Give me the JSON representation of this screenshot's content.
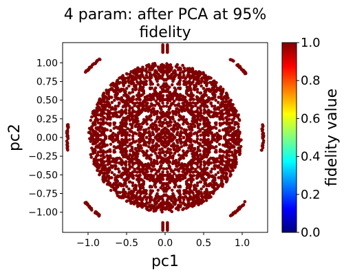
{
  "chart_data": {
    "type": "scatter",
    "title_line1": "4 param: after PCA at 95%",
    "title_line2": "fidelity",
    "xlabel": "pc1",
    "ylabel": "pc2",
    "xlim": [
      -1.33,
      1.33
    ],
    "ylim": [
      -1.27,
      1.27
    ],
    "xticks": [
      -1.0,
      -0.5,
      0.0,
      0.5,
      1.0
    ],
    "xtick_labels": [
      "−1.0",
      "−0.5",
      "0.0",
      "0.5",
      "1.0"
    ],
    "yticks": [
      1.0,
      0.75,
      0.5,
      0.25,
      0.0,
      -0.25,
      -0.5,
      -0.75,
      -1.0
    ],
    "ytick_labels": [
      "1.00",
      "0.75",
      "0.50",
      "0.25",
      "0.00",
      "−0.25",
      "−0.50",
      "−0.75",
      "−1.00"
    ],
    "point_color": "#7f0000",
    "point_value": 1.0,
    "grid": false,
    "colorbar": {
      "label": "fidelity value",
      "colormap": "jet",
      "range": [
        0.0,
        1.0
      ],
      "ticks": [
        0.0,
        0.2,
        0.4,
        0.6,
        0.8,
        1.0
      ],
      "tick_labels": [
        "0.0",
        "0.2",
        "0.4",
        "0.6",
        "0.8",
        "1.0"
      ],
      "colors": [
        "#00007f",
        "#0000ff",
        "#007fff",
        "#00ffff",
        "#7fff7f",
        "#ffff00",
        "#ff7f00",
        "#ff0000",
        "#7f0000"
      ]
    },
    "structure": {
      "disk_radius": 1.0,
      "outer_arcs": [
        {
          "center_angle_deg": 0,
          "radius": 1.27,
          "half_span_deg": 8
        },
        {
          "center_angle_deg": 180,
          "radius": 1.27,
          "half_span_deg": 8
        },
        {
          "center_angle_deg": 45,
          "radius": 1.35,
          "half_span_deg": 6
        },
        {
          "center_angle_deg": 135,
          "radius": 1.35,
          "half_span_deg": 6
        },
        {
          "center_angle_deg": 225,
          "radius": 1.35,
          "half_span_deg": 6
        },
        {
          "center_angle_deg": 315,
          "radius": 1.35,
          "half_span_deg": 6
        }
      ],
      "outer_columns": [
        {
          "x": -0.03,
          "y_range": [
            1.14,
            1.24
          ]
        },
        {
          "x": 0.03,
          "y_range": [
            1.14,
            1.24
          ]
        },
        {
          "x": -0.03,
          "y_range": [
            -1.24,
            -1.14
          ]
        },
        {
          "x": 0.03,
          "y_range": [
            -1.24,
            -1.14
          ]
        }
      ]
    }
  }
}
